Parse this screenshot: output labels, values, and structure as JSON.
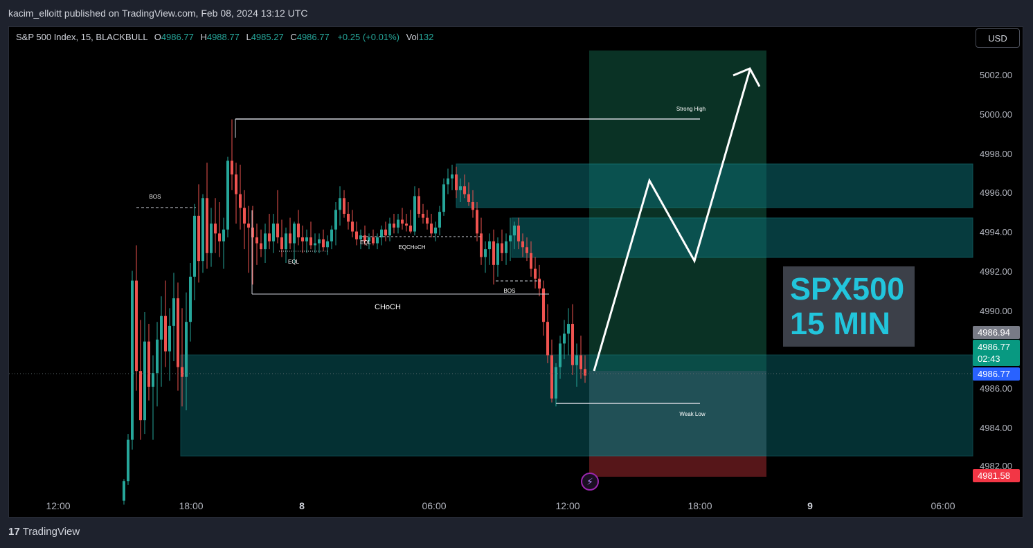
{
  "header": {
    "publish_line": "kacim_elloitt published on TradingView.com, Feb 08, 2024 13:12 UTC"
  },
  "legend": {
    "symbol": "S&P 500 Index, 15, BLACKBULL",
    "open_key": "O",
    "open": "4986.77",
    "high_key": "H",
    "high": "4988.77",
    "low_key": "L",
    "low": "4985.27",
    "close_key": "C",
    "close": "4986.77",
    "change": "+0.25 (+0.01%)",
    "vol_key": "Vol",
    "vol": "132"
  },
  "currency": "USD",
  "price_axis": [
    "5002.00",
    "5000.00",
    "4998.00",
    "4996.00",
    "4994.00",
    "4992.00",
    "4990.00",
    "4986.00",
    "4984.00",
    "4982.00"
  ],
  "time_axis": [
    "12:00",
    "18:00",
    "8",
    "06:00",
    "12:00",
    "18:00",
    "9",
    "06:00"
  ],
  "price_labels": {
    "grey": "4986.94",
    "green_price": "4986.77",
    "green_timer": "02:43",
    "blue": "4986.77",
    "red": "4981.58"
  },
  "overlay": {
    "line1": "SPX500",
    "line2": "15 MIN"
  },
  "annotations": {
    "strong_high": "Strong High",
    "weak_low": "Weak Low",
    "bos_left": "BOS",
    "bos_right": "BOS",
    "eql_left": "EQL",
    "eql_mid": "EQL",
    "eqchoch": "EQCHoCH",
    "choch": "CHoCH"
  },
  "footer": {
    "brand": "TradingView",
    "logo_icon": "tradingview-logo-icon"
  },
  "colors": {
    "up": "#26a69a",
    "down": "#ef5350",
    "zone": "#0b6c72",
    "target_zone": "#0f5a45",
    "stop_zone": "#7a1f24",
    "overlay_text": "#22c5dc",
    "blue_label": "#2962ff",
    "red_label": "#f23645"
  }
}
